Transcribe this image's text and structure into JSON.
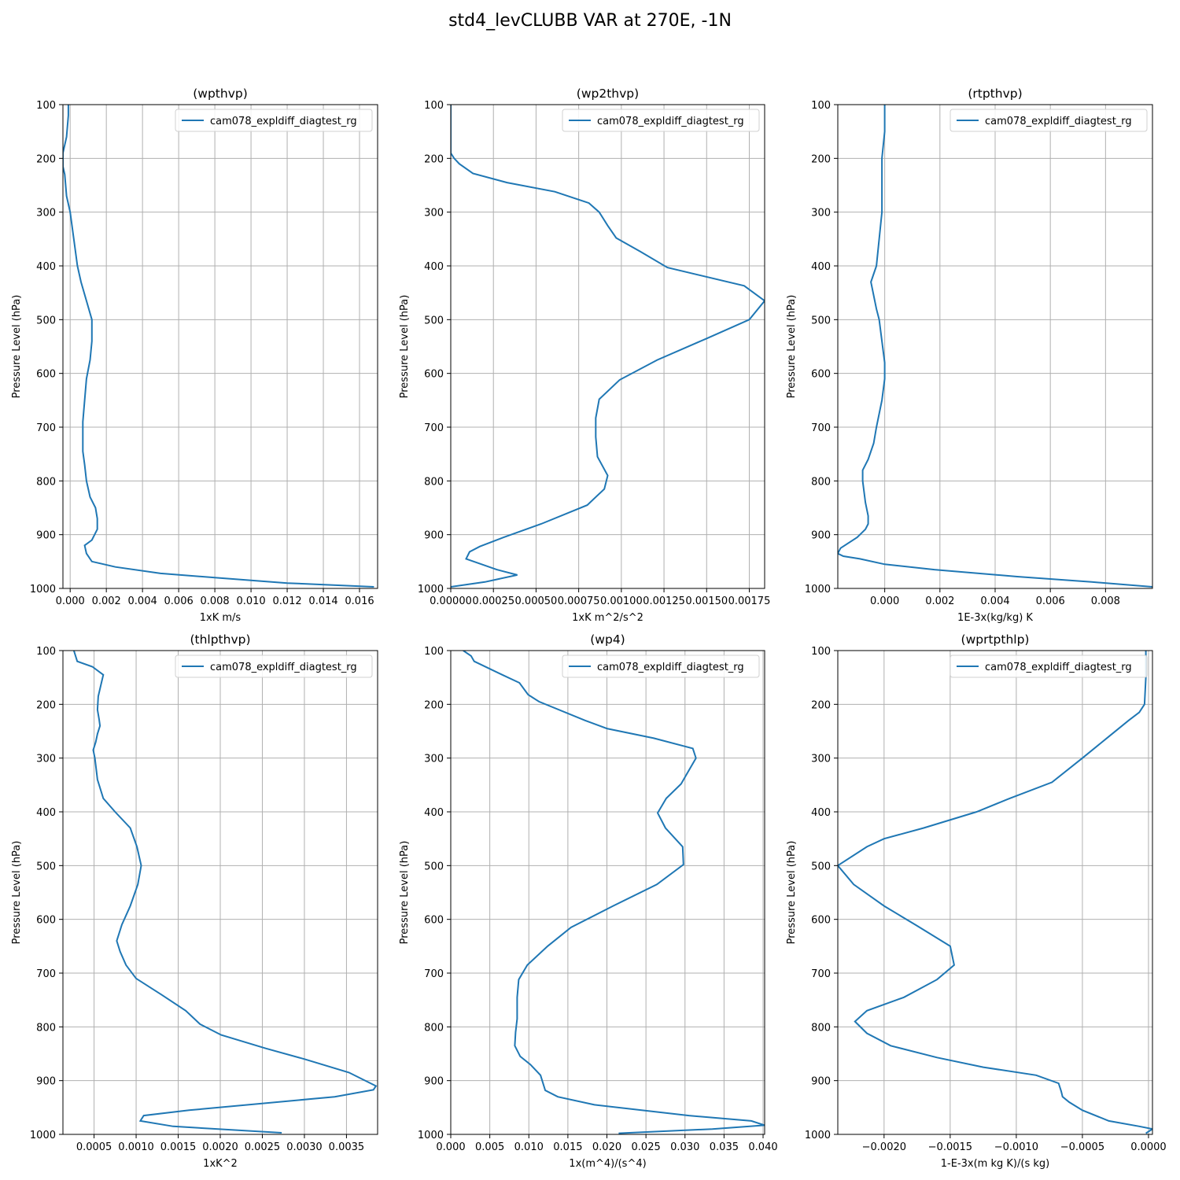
{
  "figure": {
    "title": "std4_levCLUBB VAR at 270E, -1N"
  },
  "colors": {
    "series": "#1f77b4",
    "grid": "#b0b0b0",
    "axis": "#000000"
  },
  "chart_data": [
    {
      "type": "line",
      "title": "(wpthvp)",
      "xlabel": "1xK m/s",
      "ylabel": "Pressure Level (hPa)",
      "xlim": [
        -0.0004,
        0.017
      ],
      "ylim": [
        1000,
        100
      ],
      "y_inverted": true,
      "grid": true,
      "legend_position": "upper-right",
      "xticks": [
        0.0,
        0.002,
        0.004,
        0.006,
        0.008,
        0.01,
        0.012,
        0.014,
        0.016
      ],
      "xtick_labels": [
        "0.000",
        "0.002",
        "0.004",
        "0.006",
        "0.008",
        "0.010",
        "0.012",
        "0.014",
        "0.016"
      ],
      "yticks": [
        100,
        200,
        300,
        400,
        500,
        600,
        700,
        800,
        900,
        1000
      ],
      "ytick_labels": [
        "100",
        "200",
        "300",
        "400",
        "500",
        "600",
        "700",
        "800",
        "900",
        "1000"
      ],
      "series": [
        {
          "name": "cam078_expldiff_diagtest_rg",
          "x": [
            -0.0001,
            -0.0001,
            -0.0002,
            -0.0004,
            -0.0004,
            -0.0003,
            -0.0002,
            0.0,
            0.0002,
            0.0004,
            0.0006,
            0.0009,
            0.0012,
            0.0012,
            0.0011,
            0.0009,
            0.0008,
            0.0007,
            0.0007,
            0.0007,
            0.0008,
            0.0009,
            0.0011,
            0.0014,
            0.0015,
            0.0015,
            0.0012,
            0.0008,
            0.0009,
            0.0012,
            0.0025,
            0.005,
            0.008,
            0.012,
            0.0168
          ],
          "y": [
            100,
            120,
            160,
            190,
            215,
            230,
            270,
            300,
            350,
            400,
            430,
            465,
            500,
            540,
            575,
            610,
            650,
            690,
            720,
            745,
            770,
            800,
            830,
            850,
            870,
            890,
            910,
            920,
            935,
            950,
            960,
            972,
            980,
            990,
            997
          ]
        }
      ]
    },
    {
      "type": "line",
      "title": "(wp2thvp)",
      "xlabel": "1xK m^2/s^2",
      "ylabel": "Pressure Level (hPa)",
      "xlim": [
        0.0,
        0.00184
      ],
      "ylim": [
        1000,
        100
      ],
      "y_inverted": true,
      "grid": true,
      "legend_position": "upper-right",
      "xticks": [
        0.0,
        0.00025,
        0.0005,
        0.00075,
        0.001,
        0.00125,
        0.0015,
        0.00175
      ],
      "xtick_labels": [
        "0.00000",
        "0.00025",
        "0.00050",
        "0.00075",
        "0.00100",
        "0.00125",
        "0.00150",
        "0.00175"
      ],
      "yticks": [
        100,
        200,
        300,
        400,
        500,
        600,
        700,
        800,
        900,
        1000
      ],
      "ytick_labels": [
        "100",
        "200",
        "300",
        "400",
        "500",
        "600",
        "700",
        "800",
        "900",
        "1000"
      ],
      "series": [
        {
          "name": "cam078_expldiff_diagtest_rg",
          "x": [
            0.0,
            0.0,
            0.0,
            2e-05,
            5e-05,
            0.00013,
            0.00033,
            0.00061,
            0.00081,
            0.00087,
            0.00092,
            0.00097,
            0.00111,
            0.00127,
            0.00172,
            0.00184,
            0.00175,
            0.0015,
            0.00121,
            0.00099,
            0.00087,
            0.00085,
            0.00085,
            0.00086,
            0.00092,
            0.0009,
            0.0008,
            0.00053,
            0.00031,
            0.00017,
            0.00011,
            9e-05,
            0.00027,
            0.00039,
            0.0002,
            0.0
          ],
          "y": [
            100,
            150,
            190,
            200,
            210,
            228,
            245,
            262,
            283,
            300,
            325,
            348,
            373,
            403,
            437,
            465,
            500,
            535,
            575,
            612,
            648,
            683,
            718,
            755,
            790,
            815,
            845,
            880,
            905,
            922,
            932,
            945,
            965,
            975,
            988,
            997
          ]
        }
      ]
    },
    {
      "type": "line",
      "title": "(rtpthvp)",
      "xlabel": "1E-3x(kg/kg) K",
      "ylabel": "Pressure Level (hPa)",
      "xlim": [
        -0.0017,
        0.0097
      ],
      "ylim": [
        1000,
        100
      ],
      "y_inverted": true,
      "grid": true,
      "legend_position": "upper-right",
      "xticks": [
        0.0,
        0.002,
        0.004,
        0.006,
        0.008
      ],
      "xtick_labels": [
        "0.000",
        "0.002",
        "0.004",
        "0.006",
        "0.008"
      ],
      "yticks": [
        100,
        200,
        300,
        400,
        500,
        600,
        700,
        800,
        900,
        1000
      ],
      "ytick_labels": [
        "100",
        "200",
        "300",
        "400",
        "500",
        "600",
        "700",
        "800",
        "900",
        "1000"
      ],
      "series": [
        {
          "name": "cam078_expldiff_diagtest_rg",
          "x": [
            0.0,
            0.0,
            -0.0001,
            -0.0001,
            -0.0001,
            -0.0002,
            -0.0003,
            -0.0005,
            -0.0004,
            -0.0003,
            -0.0002,
            -0.0001,
            0.0,
            0.0,
            -0.0001,
            -0.0003,
            -0.0004,
            -0.0006,
            -0.0008,
            -0.0008,
            -0.0007,
            -0.0006,
            -0.0006,
            -0.0007,
            -0.001,
            -0.0016,
            -0.0017,
            -0.0015,
            -0.0009,
            0.0,
            0.0018,
            0.0048,
            0.0075,
            0.0097
          ],
          "y": [
            100,
            150,
            200,
            250,
            300,
            350,
            400,
            430,
            455,
            480,
            500,
            540,
            580,
            610,
            650,
            700,
            730,
            760,
            780,
            800,
            840,
            865,
            880,
            890,
            905,
            925,
            935,
            940,
            945,
            955,
            965,
            978,
            988,
            997
          ]
        }
      ]
    },
    {
      "type": "line",
      "title": "(thlpthvp)",
      "xlabel": "1xK^2",
      "ylabel": "Pressure Level (hPa)",
      "xlim": [
        0.00013,
        0.00387
      ],
      "ylim": [
        1000,
        100
      ],
      "y_inverted": true,
      "grid": true,
      "legend_position": "upper-right",
      "xticks": [
        0.0005,
        0.001,
        0.0015,
        0.002,
        0.0025,
        0.003,
        0.0035
      ],
      "xtick_labels": [
        "0.0005",
        "0.0010",
        "0.0015",
        "0.0020",
        "0.0025",
        "0.0030",
        "0.0035"
      ],
      "yticks": [
        100,
        200,
        300,
        400,
        500,
        600,
        700,
        800,
        900,
        1000
      ],
      "ytick_labels": [
        "100",
        "200",
        "300",
        "400",
        "500",
        "600",
        "700",
        "800",
        "900",
        "1000"
      ],
      "series": [
        {
          "name": "cam078_expldiff_diagtest_rg",
          "x": [
            0.00026,
            0.0003,
            0.00048,
            0.00061,
            0.00058,
            0.00055,
            0.00054,
            0.00056,
            0.00057,
            0.00054,
            0.00052,
            0.00049,
            0.00051,
            0.00054,
            0.00061,
            0.00075,
            0.00093,
            0.00101,
            0.00106,
            0.00102,
            0.00093,
            0.00083,
            0.00077,
            0.00081,
            0.00088,
            0.001,
            0.0013,
            0.00159,
            0.00176,
            0.00201,
            0.00254,
            0.003,
            0.00353,
            0.00385,
            0.00382,
            0.00336,
            0.00163,
            0.00109,
            0.00105,
            0.00144,
            0.00273
          ],
          "y": [
            100,
            120,
            130,
            145,
            165,
            185,
            210,
            228,
            240,
            255,
            270,
            285,
            300,
            340,
            375,
            400,
            430,
            465,
            500,
            535,
            575,
            610,
            640,
            660,
            685,
            710,
            740,
            770,
            795,
            815,
            840,
            860,
            885,
            910,
            917,
            930,
            955,
            965,
            975,
            985,
            997
          ]
        }
      ]
    },
    {
      "type": "line",
      "title": "(wp4)",
      "xlabel": "1x(m^4)/(s^4)",
      "ylabel": "Pressure Level (hPa)",
      "xlim": [
        0.0,
        0.0402
      ],
      "ylim": [
        1000,
        100
      ],
      "y_inverted": true,
      "grid": true,
      "legend_position": "upper-right",
      "xticks": [
        0.0,
        0.005,
        0.01,
        0.015,
        0.02,
        0.025,
        0.03,
        0.035,
        0.04
      ],
      "xtick_labels": [
        "0.000",
        "0.005",
        "0.010",
        "0.015",
        "0.020",
        "0.025",
        "0.030",
        "0.035",
        "0.040"
      ],
      "yticks": [
        100,
        200,
        300,
        400,
        500,
        600,
        700,
        800,
        900,
        1000
      ],
      "ytick_labels": [
        "100",
        "200",
        "300",
        "400",
        "500",
        "600",
        "700",
        "800",
        "900",
        "1000"
      ],
      "series": [
        {
          "name": "cam078_expldiff_diagtest_rg",
          "x": [
            0.0016,
            0.0026,
            0.003,
            0.0066,
            0.0088,
            0.0099,
            0.0113,
            0.0172,
            0.02,
            0.026,
            0.031,
            0.0314,
            0.0303,
            0.0295,
            0.0276,
            0.0265,
            0.0275,
            0.0297,
            0.0298,
            0.0264,
            0.0208,
            0.0154,
            0.0124,
            0.0098,
            0.0087,
            0.0085,
            0.0085,
            0.0083,
            0.0082,
            0.0089,
            0.0102,
            0.0115,
            0.0121,
            0.0137,
            0.0184,
            0.0305,
            0.0385,
            0.0402,
            0.0335,
            0.0215
          ],
          "y": [
            100,
            110,
            120,
            145,
            160,
            182,
            195,
            230,
            245,
            263,
            282,
            300,
            328,
            348,
            375,
            402,
            430,
            465,
            498,
            535,
            575,
            615,
            650,
            685,
            712,
            745,
            785,
            810,
            835,
            855,
            870,
            890,
            918,
            930,
            945,
            965,
            975,
            983,
            990,
            998
          ]
        }
      ]
    },
    {
      "type": "line",
      "title": "(wprtpthlp)",
      "xlabel": "1-E-3x(m kg K)/(s kg)",
      "ylabel": "Pressure Level (hPa)",
      "xlim": [
        -0.00235,
        3e-05
      ],
      "ylim": [
        1000,
        100
      ],
      "y_inverted": true,
      "grid": true,
      "legend_position": "upper-right",
      "xticks": [
        -0.002,
        -0.0015,
        -0.001,
        -0.0005,
        0.0
      ],
      "xtick_labels": [
        "−0.0020",
        "−0.0015",
        "−0.0010",
        "−0.0005",
        "0.0000"
      ],
      "yticks": [
        100,
        200,
        300,
        400,
        500,
        600,
        700,
        800,
        900,
        1000
      ],
      "ytick_labels": [
        "100",
        "200",
        "300",
        "400",
        "500",
        "600",
        "700",
        "800",
        "900",
        "1000"
      ],
      "series": [
        {
          "name": "cam078_expldiff_diagtest_rg",
          "x": [
            -2e-05,
            -2e-05,
            -3e-05,
            -7e-05,
            -0.00015,
            -0.0003,
            -0.0005,
            -0.00073,
            -0.00105,
            -0.0013,
            -0.0017,
            -0.002,
            -0.00213,
            -0.00235,
            -0.00223,
            -0.002,
            -0.00175,
            -0.0015,
            -0.00147,
            -0.0016,
            -0.00185,
            -0.00213,
            -0.00222,
            -0.00213,
            -0.00195,
            -0.0016,
            -0.00125,
            -0.00085,
            -0.00068,
            -0.00066,
            -0.00065,
            -0.0006,
            -0.0005,
            -0.0003,
            -7e-05,
            3e-05,
            -2e-05
          ],
          "y": [
            100,
            150,
            200,
            215,
            230,
            260,
            300,
            345,
            375,
            400,
            430,
            450,
            465,
            500,
            535,
            575,
            612,
            650,
            685,
            712,
            745,
            770,
            790,
            812,
            835,
            857,
            875,
            890,
            905,
            920,
            930,
            940,
            955,
            975,
            985,
            990,
            998
          ]
        }
      ]
    }
  ]
}
